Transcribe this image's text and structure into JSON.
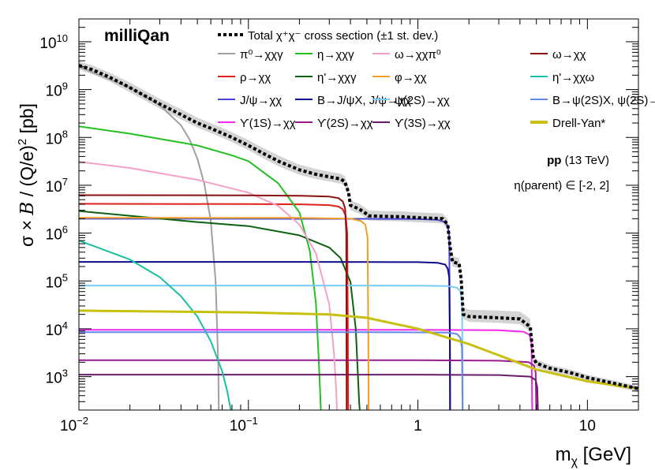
{
  "chart_data": {
    "type": "line",
    "title": "",
    "experiment_label": "milliQan",
    "xlabel": "m",
    "xlabel_sub": "χ",
    "xlabel_unit": " [GeV]",
    "ylabel_pre": "σ × ",
    "ylabel_b": "B",
    "ylabel_mid": " / (Q/e)",
    "ylabel_sup": "2",
    "ylabel_post": " [pb]",
    "x_scale": "log",
    "y_scale": "log",
    "xlim": [
      0.01,
      20
    ],
    "ylim": [
      200,
      30000000000
    ],
    "x_ticks": [
      {
        "value": 0.01,
        "base": "10",
        "exp": "−2"
      },
      {
        "value": 0.1,
        "base": "10",
        "exp": "−1"
      },
      {
        "value": 1,
        "base": "1",
        "exp": ""
      },
      {
        "value": 10,
        "base": "10",
        "exp": ""
      }
    ],
    "y_ticks": [
      {
        "value": 1000,
        "base": "10",
        "exp": "3"
      },
      {
        "value": 10000,
        "base": "10",
        "exp": "4"
      },
      {
        "value": 100000,
        "base": "10",
        "exp": "5"
      },
      {
        "value": 1000000,
        "base": "10",
        "exp": "6"
      },
      {
        "value": 10000000,
        "base": "10",
        "exp": "7"
      },
      {
        "value": 100000000,
        "base": "10",
        "exp": "8"
      },
      {
        "value": 1000000000,
        "base": "10",
        "exp": "9"
      },
      {
        "value": 10000000000,
        "base": "10",
        "exp": "10"
      }
    ],
    "grid": false,
    "legend_position": "top",
    "annotations": {
      "energy_bold": "pp",
      "energy_rest": " (13 TeV)",
      "eta_range": "η(parent) ∈ [-2, 2]"
    },
    "total_legend": "Total χ⁺χ⁻ cross section (±1 st. dev.)",
    "total": {
      "x": [
        0.01,
        0.012,
        0.015,
        0.02,
        0.03,
        0.04,
        0.05,
        0.06,
        0.08,
        0.1,
        0.12,
        0.15,
        0.2,
        0.25,
        0.3,
        0.35,
        0.37,
        0.39,
        0.4,
        0.45,
        0.5,
        0.51,
        0.6,
        0.8,
        1.0,
        1.2,
        1.4,
        1.5,
        1.55,
        1.6,
        1.75,
        1.8,
        1.85,
        2.0,
        3.0,
        4.0,
        4.6,
        4.7,
        4.8,
        5.0,
        6.0,
        8.0,
        10,
        15,
        20
      ],
      "y": [
        3200000000,
        2600000000,
        1850000000,
        1100000000,
        500000000,
        300000000,
        200000000,
        155000000,
        100000000,
        68000000,
        48000000,
        32000000,
        21000000,
        17000000,
        15000000,
        13500000,
        12000000,
        7000000,
        3800000,
        3200000,
        2500000,
        2300000,
        2250000,
        2200000,
        2100000,
        2050000,
        2000000,
        1500000,
        500000,
        250000,
        230000,
        110000,
        20000,
        18000,
        17000,
        16000,
        11000,
        5000,
        2500,
        1900,
        1500,
        1200,
        950,
        700,
        560
      ],
      "band_up": [
        3900000000,
        3200000000,
        2300000000,
        1400000000,
        640000000,
        390000000,
        260000000,
        200000000,
        128000000,
        88000000,
        62000000,
        42000000,
        27000000,
        22000000,
        19000000,
        17500000,
        15500000,
        9200000,
        4900000,
        4100000,
        3200000,
        3000000,
        2900000,
        2850000,
        2700000,
        2650000,
        2580000,
        1950000,
        650000,
        330000,
        300000,
        145000,
        28000,
        25000,
        24000,
        23000,
        16000,
        7000,
        3200,
        2300,
        1750,
        1400,
        1100,
        800,
        640
      ],
      "band_dn": [
        2600000000,
        2100000000,
        1500000000,
        880000000,
        400000000,
        240000000,
        160000000,
        124000000,
        80000000,
        54000000,
        38000000,
        25000000,
        16500000,
        13500000,
        12000000,
        10800000,
        9600000,
        5600000,
        3000000,
        2550000,
        2000000,
        1850000,
        1800000,
        1760000,
        1680000,
        1640000,
        1600000,
        1200000,
        400000,
        200000,
        184000,
        88000,
        16000,
        14000,
        13300,
        12500,
        8600,
        3900,
        2000,
        1550,
        1280,
        1030,
        810,
        600,
        480
      ]
    },
    "series": [
      {
        "name": "π⁰→χχγ",
        "color": "#a0a0a0",
        "x": [
          0.01,
          0.02,
          0.03,
          0.04,
          0.045,
          0.05,
          0.055,
          0.06,
          0.064,
          0.0665,
          0.067
        ],
        "y": [
          3000000000,
          1100000000,
          470000000,
          180000000,
          90000000,
          36000000,
          10500000,
          1800000,
          100000,
          1500,
          100
        ]
      },
      {
        "name": "ρ→χχ",
        "color": "#e0201a",
        "x": [
          0.01,
          0.1,
          0.2,
          0.3,
          0.34,
          0.36,
          0.375,
          0.383,
          0.386,
          0.388
        ],
        "y": [
          4100000,
          4050000,
          4000000,
          3850000,
          3600000,
          3150000,
          2300000,
          1000000,
          10000,
          100
        ]
      },
      {
        "name": "J/ψ→χχ",
        "color": "#4848d8",
        "x": [
          0.01,
          0.5,
          1.0,
          1.3,
          1.45,
          1.5,
          1.53,
          1.545,
          1.55
        ],
        "y": [
          2000000,
          1990000,
          1970000,
          1900000,
          1700000,
          1400000,
          900000,
          10000,
          100
        ]
      },
      {
        "name": "ϒ(1S)→χχ",
        "color": "#f028f0",
        "x": [
          0.01,
          1,
          3,
          4.2,
          4.55,
          4.68,
          4.72,
          4.735
        ],
        "y": [
          9500,
          9500,
          9300,
          8700,
          7500,
          5000,
          300,
          100
        ]
      },
      {
        "name": "η→χχγ",
        "color": "#22c022",
        "x": [
          0.01,
          0.02,
          0.05,
          0.08,
          0.1,
          0.15,
          0.2,
          0.23,
          0.25,
          0.26,
          0.27
        ],
        "y": [
          170000000,
          120000000,
          68000000,
          42000000,
          32000000,
          11000000,
          2700000,
          430000,
          35000,
          2300,
          100
        ]
      },
      {
        "name": "η'→χχγ",
        "color": "#0c6010",
        "x": [
          0.01,
          0.05,
          0.1,
          0.2,
          0.3,
          0.35,
          0.4,
          0.43,
          0.45,
          0.46
        ],
        "y": [
          2900000,
          1700000,
          1400000,
          900000,
          500000,
          300000,
          95000,
          10000,
          300,
          100
        ]
      },
      {
        "name": "B→J/ψX, J/ψ→χχ",
        "color": "#0a0a8a",
        "x": [
          0.01,
          0.5,
          1.0,
          1.3,
          1.45,
          1.5,
          1.53,
          1.545,
          1.55
        ],
        "y": [
          250000,
          249000,
          247000,
          240000,
          220000,
          180000,
          120000,
          5000,
          100
        ]
      },
      {
        "name": "ϒ(2S)→χχ",
        "color": "#9a1a90",
        "x": [
          0.01,
          1,
          3,
          4.5,
          4.85,
          4.95,
          4.99,
          5.0
        ],
        "y": [
          2200,
          2200,
          2150,
          2000,
          1700,
          1200,
          200,
          100
        ]
      },
      {
        "name": "ω→χχπ⁰",
        "color": "#f4a0c8",
        "x": [
          0.01,
          0.02,
          0.05,
          0.1,
          0.15,
          0.2,
          0.25,
          0.3,
          0.32,
          0.33,
          0.335
        ],
        "y": [
          31000000,
          23000000,
          13000000,
          7000000,
          3700000,
          1500000,
          380000,
          32000,
          3000,
          500,
          100
        ]
      },
      {
        "name": "φ→χχ",
        "color": "#f0a028",
        "x": [
          0.01,
          0.2,
          0.4,
          0.46,
          0.49,
          0.505,
          0.51,
          0.512
        ],
        "y": [
          2100000,
          2080000,
          2000000,
          1800000,
          1500000,
          800000,
          5000,
          100
        ]
      },
      {
        "name": "ψ(2S)→χχ",
        "color": "#78ccf4",
        "x": [
          0.01,
          0.5,
          1.0,
          1.5,
          1.7,
          1.78,
          1.82,
          1.835,
          1.84
        ],
        "y": [
          80000,
          80000,
          79500,
          78000,
          72000,
          62000,
          40000,
          1500,
          100
        ]
      },
      {
        "name": "ϒ(3S)→χχ",
        "color": "#6a1a6a",
        "x": [
          0.01,
          1,
          3,
          4.6,
          4.95,
          5.06,
          5.12,
          5.14
        ],
        "y": [
          1100,
          1100,
          1080,
          1000,
          850,
          600,
          150,
          100
        ]
      },
      {
        "name": "ω→χχ",
        "color": "#8a1010",
        "x": [
          0.01,
          0.1,
          0.2,
          0.3,
          0.34,
          0.36,
          0.372,
          0.378,
          0.38
        ],
        "y": [
          6200000,
          6150000,
          6050000,
          5800000,
          5400000,
          4600000,
          3300000,
          1000000,
          100
        ]
      },
      {
        "name": "η'→χχω",
        "color": "#18c0a0",
        "x": [
          0.01,
          0.02,
          0.03,
          0.04,
          0.05,
          0.06,
          0.07,
          0.075,
          0.08,
          0.082
        ],
        "y": [
          700000,
          280000,
          120000,
          48000,
          18000,
          5500,
          1300,
          500,
          150,
          100
        ]
      },
      {
        "name": "B→ψ(2S)X, ψ(2S)→χχ",
        "color": "#6688e8",
        "x": [
          0.01,
          0.5,
          1.0,
          1.5,
          1.7,
          1.78,
          1.82,
          1.835,
          1.84
        ],
        "y": [
          8500,
          8500,
          8400,
          8300,
          7800,
          6500,
          4000,
          200,
          100
        ]
      },
      {
        "name": "Drell-Yan*",
        "color": "#c8c010",
        "x": [
          0.01,
          0.1,
          0.3,
          0.5,
          1.0,
          2.0,
          3.0,
          5.0,
          10,
          20
        ],
        "y": [
          24000,
          22000,
          20000,
          17000,
          10000,
          4800,
          2800,
          1400,
          800,
          560
        ]
      }
    ]
  }
}
